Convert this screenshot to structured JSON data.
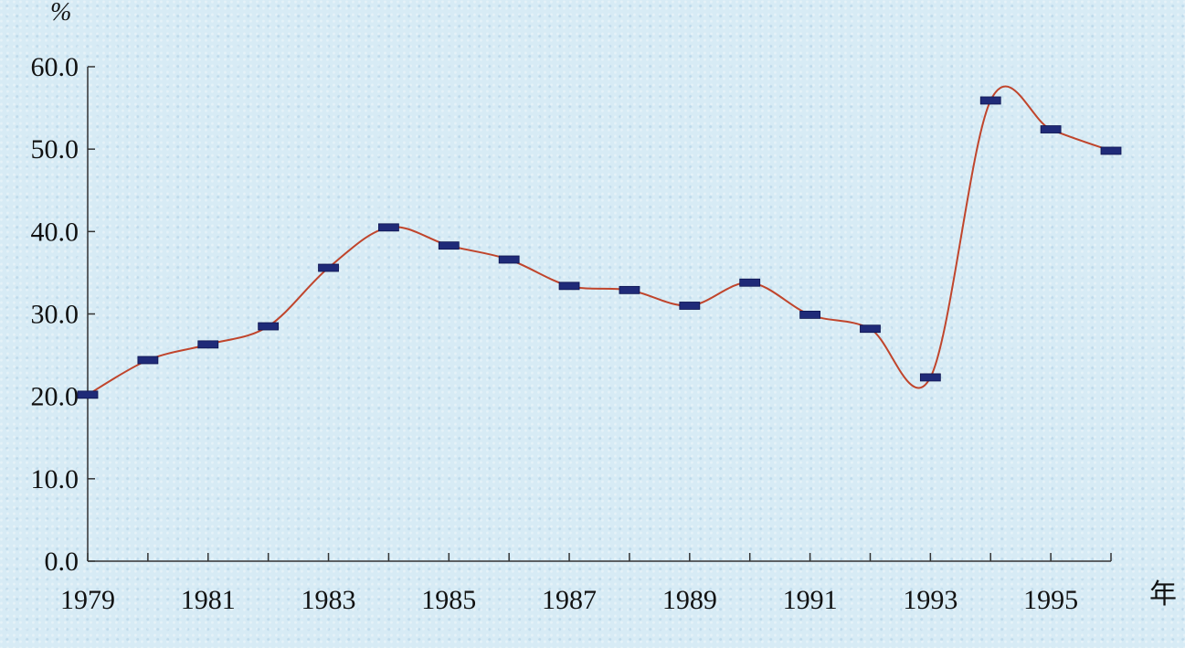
{
  "chart_data": {
    "type": "line",
    "y_unit_label": "%",
    "x_unit_label": "年",
    "ylim": [
      0,
      60
    ],
    "y_ticks": [
      "0.0",
      "10.0",
      "20.0",
      "30.0",
      "40.0",
      "50.0",
      "60.0"
    ],
    "x_tick_labels": [
      "1979",
      "1981",
      "1983",
      "1985",
      "1987",
      "1989",
      "1991",
      "1993",
      "1995"
    ],
    "x": [
      1979,
      1980,
      1981,
      1982,
      1983,
      1984,
      1985,
      1986,
      1987,
      1988,
      1989,
      1990,
      1991,
      1992,
      1993,
      1994,
      1995,
      1996
    ],
    "values": [
      20.2,
      24.4,
      26.3,
      28.5,
      35.6,
      40.5,
      38.3,
      36.6,
      33.4,
      32.9,
      31.0,
      33.8,
      29.9,
      28.2,
      22.3,
      55.9,
      52.4,
      49.8
    ],
    "colors": {
      "line": "#c0452c",
      "marker": "#1f2a78",
      "axis": "#333333"
    },
    "grid": false
  }
}
